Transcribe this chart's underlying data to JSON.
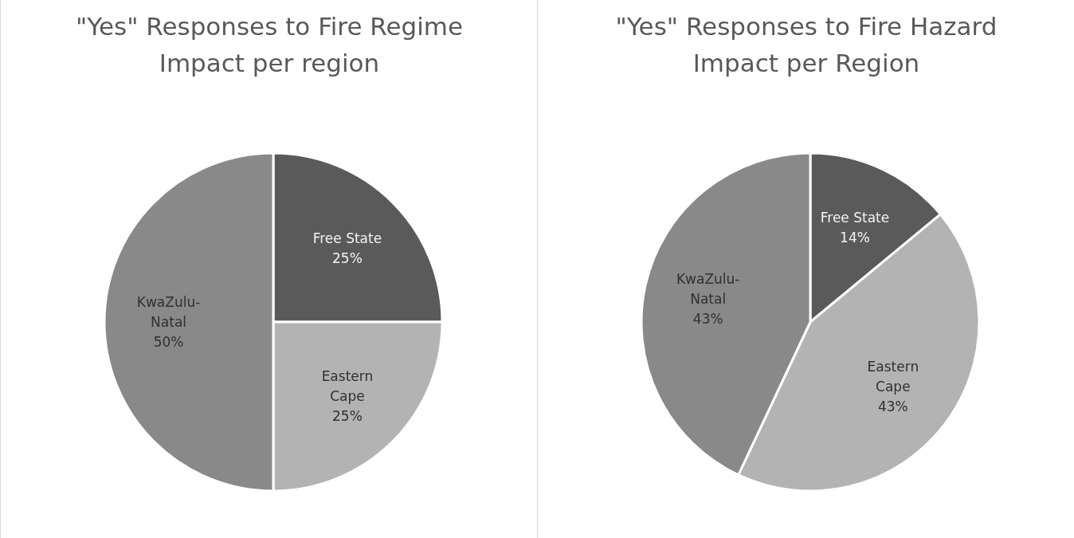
{
  "chart_data": [
    {
      "type": "pie",
      "title": "\"Yes\" Responses to Fire Regime Impact per region",
      "categories": [
        "Free State",
        "Eastern Cape",
        "KwaZulu-Natal"
      ],
      "values": [
        25,
        25,
        50
      ],
      "value_labels": [
        "25%",
        "25%",
        "50%"
      ],
      "colors": [
        "#5a5a5a",
        "#b3b3b3",
        "#898989"
      ],
      "legend": false
    },
    {
      "type": "pie",
      "title": "\"Yes\" Responses to Fire Hazard Impact per Region",
      "categories": [
        "Free State",
        "Eastern Cape",
        "KwaZulu-Natal"
      ],
      "values": [
        14,
        43,
        43
      ],
      "value_labels": [
        "14%",
        "43%",
        "43%"
      ],
      "colors": [
        "#5a5a5a",
        "#b3b3b3",
        "#898989"
      ],
      "legend": false
    }
  ]
}
